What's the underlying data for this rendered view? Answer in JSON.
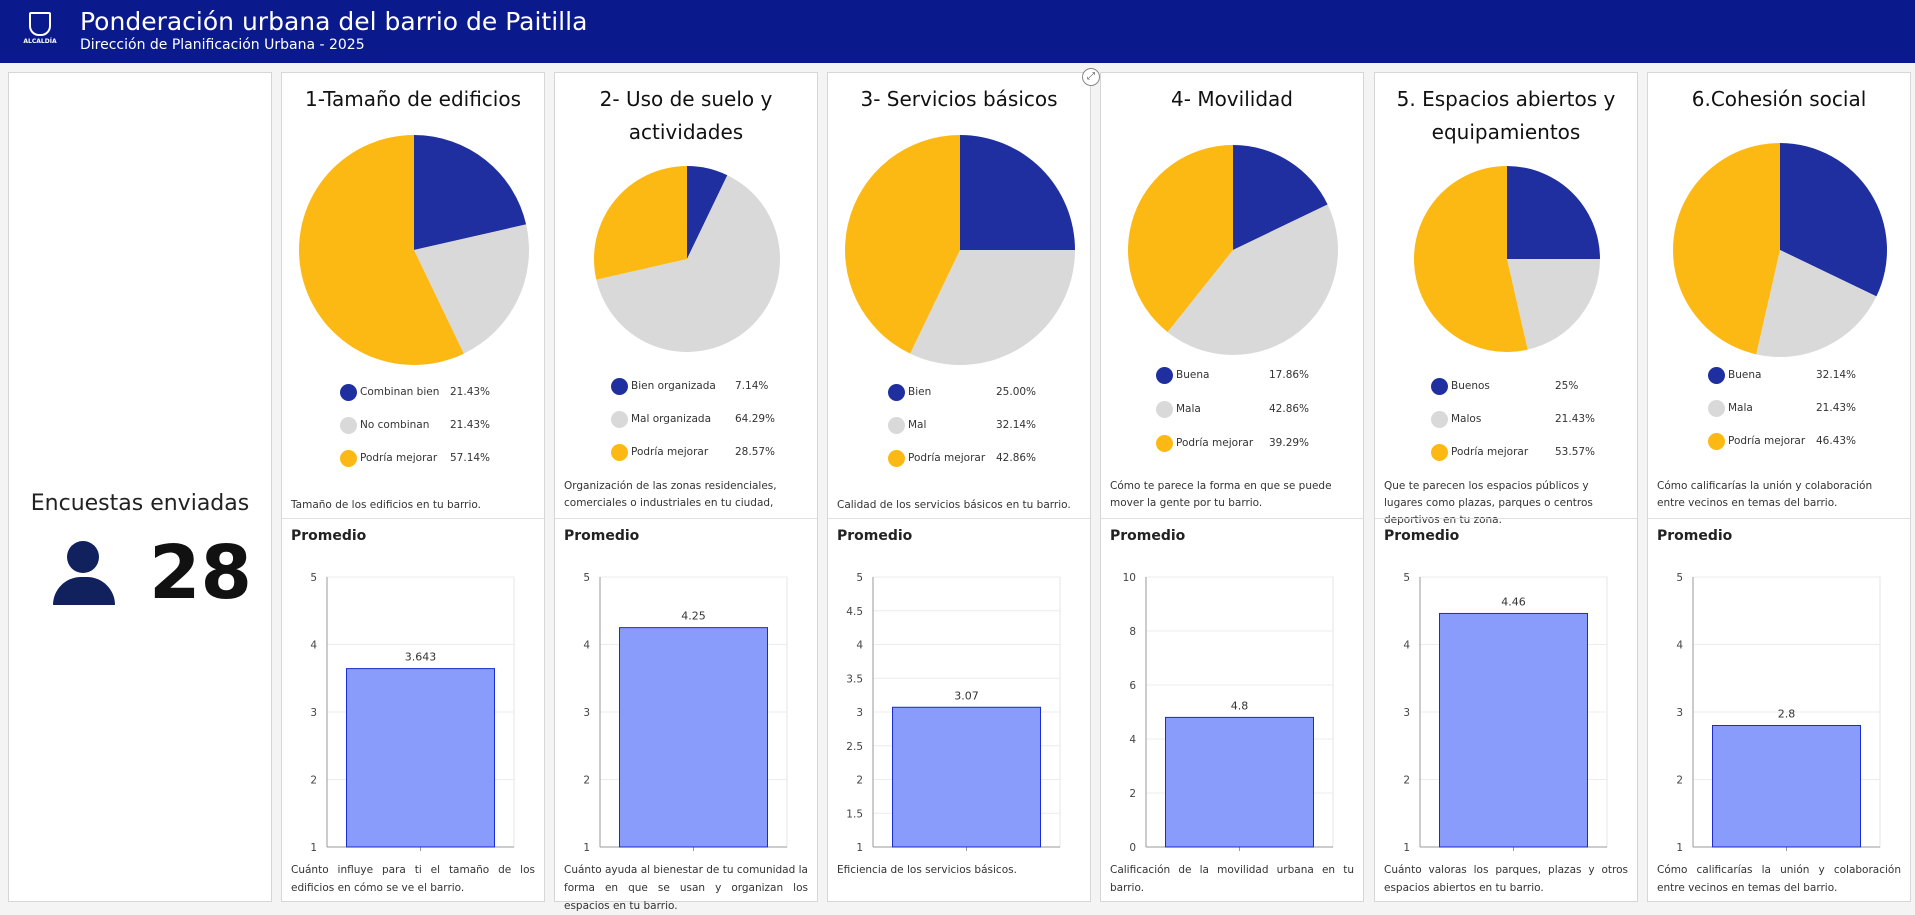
{
  "header": {
    "title": "Ponderación urbana del barrio de Paitilla",
    "subtitle": "Dirección de Planificación Urbana - 2025",
    "logo_text": "ALCALDÍA"
  },
  "colors": {
    "header_bg": "#0a1a8c",
    "blue": "#1f2fa0",
    "gray": "#d9d9d9",
    "yellow": "#fdb913",
    "bar_fill": "#8a9cfb",
    "bar_stroke": "#1a2bd0"
  },
  "kpi": {
    "title": "Encuestas enviadas",
    "value": "28",
    "icon": "person-icon"
  },
  "panels": [
    {
      "title": "1-Tamaño de edificios",
      "legend": [
        {
          "label": "Combinan bien",
          "value": "21.43%"
        },
        {
          "label": "No combinan",
          "value": "21.43%"
        },
        {
          "label": "Podría mejorar",
          "value": "57.14%"
        }
      ],
      "description": "Tamaño de los edificios en tu barrio.",
      "promedio_label": "Promedio",
      "bar_description": "Cuánto influye para ti el tamaño de los edificios en cómo se ve el barrio."
    },
    {
      "title": "2- Uso de suelo y actividades",
      "legend": [
        {
          "label": "Bien organizada",
          "value": "7.14%"
        },
        {
          "label": "Mal organizada",
          "value": "64.29%"
        },
        {
          "label": "Podría mejorar",
          "value": "28.57%"
        }
      ],
      "description": "Organización de las zonas residenciales, comerciales o industriales en tu ciudad,",
      "promedio_label": "Promedio",
      "bar_description": "Cuánto ayuda al bienestar de tu comunidad la forma en que se usan y organizan los espacios en tu barrio."
    },
    {
      "title": "3- Servicios básicos",
      "legend": [
        {
          "label": "Bien",
          "value": "25.00%"
        },
        {
          "label": "Mal",
          "value": "32.14%"
        },
        {
          "label": "Podría mejorar",
          "value": "42.86%"
        }
      ],
      "description": "Calidad de los servicios básicos en tu barrio.",
      "promedio_label": "Promedio",
      "bar_description": "Eficiencia de los servicios básicos."
    },
    {
      "title": "4- Movilidad",
      "legend": [
        {
          "label": "Buena",
          "value": "17.86%"
        },
        {
          "label": "Mala",
          "value": "42.86%"
        },
        {
          "label": "Podría mejorar",
          "value": "39.29%"
        }
      ],
      "description": "Cómo te parece la forma en que se puede mover la gente por tu barrio.",
      "promedio_label": "Promedio",
      "bar_description": "Calificación de la movilidad urbana en tu barrio."
    },
    {
      "title": "5. Espacios abiertos y equipamientos",
      "legend": [
        {
          "label": "Buenos",
          "value": "25%"
        },
        {
          "label": "Malos",
          "value": "21.43%"
        },
        {
          "label": "Podría mejorar",
          "value": "53.57%"
        }
      ],
      "description": "Que te parecen los espacios públicos y lugares como plazas, parques o centros deportivos en tu zona.",
      "promedio_label": "Promedio",
      "bar_description": "Cuánto valoras los parques, plazas y otros espacios abiertos en tu barrio."
    },
    {
      "title": "6.Cohesión social",
      "legend": [
        {
          "label": "Buena",
          "value": "32.14%"
        },
        {
          "label": "Mala",
          "value": "21.43%"
        },
        {
          "label": "Podría mejorar",
          "value": "46.43%"
        }
      ],
      "description": "Cómo calificarías la unión y colaboración entre vecinos en temas del barrio.",
      "promedio_label": "Promedio",
      "bar_description": "Cómo calificarías la unión y colaboración entre vecinos en temas del barrio."
    }
  ],
  "chart_data": [
    {
      "type": "pie",
      "categories": [
        "Combinan bien",
        "No combinan",
        "Podría mejorar"
      ],
      "values": [
        21.43,
        21.43,
        57.14
      ]
    },
    {
      "type": "pie",
      "categories": [
        "Bien organizada",
        "Mal organizada",
        "Podría mejorar"
      ],
      "values": [
        7.14,
        64.29,
        28.57
      ]
    },
    {
      "type": "pie",
      "categories": [
        "Bien",
        "Mal",
        "Podría mejorar"
      ],
      "values": [
        25.0,
        32.14,
        42.86
      ]
    },
    {
      "type": "pie",
      "categories": [
        "Buena",
        "Mala",
        "Podría mejorar"
      ],
      "values": [
        17.86,
        42.86,
        39.29
      ]
    },
    {
      "type": "pie",
      "categories": [
        "Buenos",
        "Malos",
        "Podría mejorar"
      ],
      "values": [
        25,
        21.43,
        53.57
      ]
    },
    {
      "type": "pie",
      "categories": [
        "Buena",
        "Mala",
        "Podría mejorar"
      ],
      "values": [
        32.14,
        21.43,
        46.43
      ]
    },
    {
      "type": "bar",
      "title": "Promedio",
      "values": [
        3.643
      ],
      "value_labels": [
        "3.643"
      ],
      "ylim": [
        1,
        5
      ],
      "yticks": [
        "1",
        "2",
        "3",
        "4",
        "5"
      ]
    },
    {
      "type": "bar",
      "title": "Promedio",
      "values": [
        4.25
      ],
      "value_labels": [
        "4.25"
      ],
      "ylim": [
        1,
        5
      ],
      "yticks": [
        "1",
        "2",
        "3",
        "4",
        "5"
      ]
    },
    {
      "type": "bar",
      "title": "Promedio",
      "values": [
        3.07
      ],
      "value_labels": [
        "3.07"
      ],
      "ylim": [
        1,
        5
      ],
      "yticks": [
        "1",
        "1.5",
        "2",
        "2.5",
        "3",
        "3.5",
        "4",
        "4.5",
        "5"
      ]
    },
    {
      "type": "bar",
      "title": "Promedio",
      "values": [
        4.8
      ],
      "value_labels": [
        "4.8"
      ],
      "ylim": [
        0,
        10
      ],
      "yticks": [
        "0",
        "2",
        "4",
        "6",
        "8",
        "10"
      ]
    },
    {
      "type": "bar",
      "title": "Promedio",
      "values": [
        4.46
      ],
      "value_labels": [
        "4.46"
      ],
      "ylim": [
        1,
        5
      ],
      "yticks": [
        "1",
        "2",
        "3",
        "4",
        "5"
      ]
    },
    {
      "type": "bar",
      "title": "Promedio",
      "values": [
        2.8
      ],
      "value_labels": [
        "2.8"
      ],
      "ylim": [
        1,
        5
      ],
      "yticks": [
        "1",
        "2",
        "3",
        "4",
        "5"
      ]
    }
  ]
}
